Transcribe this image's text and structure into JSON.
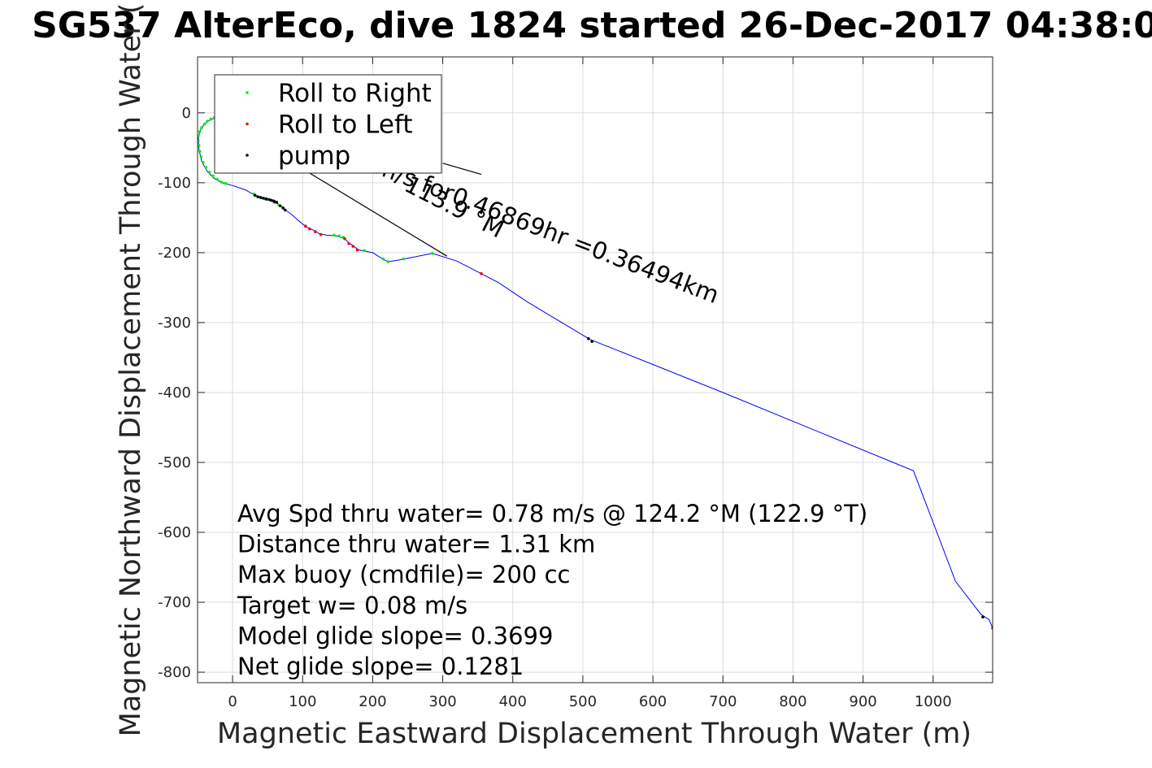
{
  "chart_data": {
    "type": "scatter",
    "title": "SG537 AlterEco, dive 1824 started 26-Dec-2017 04:38:0",
    "xlabel": "Magnetic Eastward Displacement Through Water (m)",
    "ylabel": "Magnetic Northward Displacement Through Water (",
    "xlim": [
      -50,
      1085
    ],
    "ylim": [
      -815,
      80
    ],
    "xticks": [
      0,
      100,
      200,
      300,
      400,
      500,
      600,
      700,
      800,
      900,
      1000
    ],
    "yticks": [
      0,
      -100,
      -200,
      -300,
      -400,
      -500,
      -600,
      -700,
      -800
    ],
    "grid": true,
    "legend_position": "top-left",
    "legend": [
      {
        "label": "Roll to Right",
        "color": "#00ee00"
      },
      {
        "label": "Roll to Left",
        "color": "#ff0000"
      },
      {
        "label": "pump",
        "color": "#000000"
      }
    ],
    "series": [
      {
        "name": "track",
        "color": "#0000ff",
        "style": "line",
        "points": [
          [
            0,
            0
          ],
          [
            -12,
            -3
          ],
          [
            -25,
            -7
          ],
          [
            -36,
            -12
          ],
          [
            -45,
            -22
          ],
          [
            -49,
            -35
          ],
          [
            -48,
            -52
          ],
          [
            -44,
            -70
          ],
          [
            -36,
            -84
          ],
          [
            -26,
            -94
          ],
          [
            -15,
            -100
          ],
          [
            0,
            -104
          ],
          [
            18,
            -110
          ],
          [
            32,
            -118
          ],
          [
            42,
            -123
          ],
          [
            58,
            -126
          ],
          [
            65,
            -130
          ],
          [
            74,
            -138
          ],
          [
            85,
            -146
          ],
          [
            95,
            -155
          ],
          [
            105,
            -163
          ],
          [
            116,
            -168
          ],
          [
            124,
            -173
          ],
          [
            135,
            -175
          ],
          [
            148,
            -176
          ],
          [
            160,
            -180
          ],
          [
            166,
            -186
          ],
          [
            172,
            -190
          ],
          [
            180,
            -196
          ],
          [
            200,
            -200
          ],
          [
            216,
            -210
          ],
          [
            222,
            -213
          ],
          [
            240,
            -210
          ],
          [
            285,
            -201
          ],
          [
            320,
            -212
          ],
          [
            355,
            -230
          ],
          [
            380,
            -243
          ],
          [
            420,
            -270
          ],
          [
            470,
            -300
          ],
          [
            510,
            -324
          ],
          [
            550,
            -340
          ],
          [
            700,
            -400
          ],
          [
            972,
            -512
          ],
          [
            1032,
            -670
          ],
          [
            1068,
            -717
          ],
          [
            1080,
            -725
          ],
          [
            1085,
            -737
          ]
        ]
      },
      {
        "name": "Roll to Right",
        "color": "#00ee00",
        "style": "dots",
        "points": [
          [
            -3,
            -1
          ],
          [
            -8,
            -2
          ],
          [
            -14,
            -3
          ],
          [
            -20,
            -5
          ],
          [
            -26,
            -7
          ],
          [
            -31,
            -9
          ],
          [
            -36,
            -12
          ],
          [
            -40,
            -16
          ],
          [
            -44,
            -21
          ],
          [
            -47,
            -27
          ],
          [
            -49,
            -33
          ],
          [
            -49,
            -40
          ],
          [
            -48,
            -47
          ],
          [
            -47,
            -55
          ],
          [
            -45,
            -63
          ],
          [
            -42,
            -71
          ],
          [
            -38,
            -78
          ],
          [
            -33,
            -85
          ],
          [
            -28,
            -90
          ],
          [
            -22,
            -95
          ],
          [
            -16,
            -99
          ],
          [
            -10,
            -101
          ],
          [
            30,
            -116
          ],
          [
            48,
            -124
          ],
          [
            60,
            -128
          ],
          [
            66,
            -132
          ],
          [
            145,
            -175
          ],
          [
            152,
            -176
          ],
          [
            158,
            -178
          ],
          [
            188,
            -197
          ],
          [
            215,
            -209
          ],
          [
            222,
            -213
          ],
          [
            244,
            -209
          ],
          [
            285,
            -201
          ]
        ]
      },
      {
        "name": "Roll to Left",
        "color": "#ff0000",
        "style": "dots",
        "points": [
          [
            -1,
            -1
          ],
          [
            104,
            -162
          ],
          [
            110,
            -166
          ],
          [
            118,
            -170
          ],
          [
            126,
            -174
          ],
          [
            160,
            -180
          ],
          [
            166,
            -187
          ],
          [
            172,
            -191
          ],
          [
            178,
            -196
          ],
          [
            355,
            -230
          ],
          [
            1085,
            -737
          ]
        ]
      },
      {
        "name": "pump",
        "color": "#000000",
        "style": "dots",
        "points": [
          [
            32,
            -118
          ],
          [
            36,
            -120
          ],
          [
            40,
            -121
          ],
          [
            44,
            -122
          ],
          [
            48,
            -123
          ],
          [
            52,
            -124
          ],
          [
            55,
            -125
          ],
          [
            58,
            -126
          ],
          [
            60,
            -127
          ],
          [
            63,
            -128
          ],
          [
            68,
            -133
          ],
          [
            72,
            -136
          ],
          [
            75,
            -139
          ],
          [
            508,
            -323
          ],
          [
            513,
            -327
          ],
          [
            1071,
            -721
          ]
        ]
      }
    ],
    "guide_lines": [
      [
        [
          70,
          -62
        ],
        [
          306,
          -205
        ]
      ],
      [
        [
          300,
          -72
        ],
        [
          355,
          -88
        ]
      ]
    ],
    "annotations": [
      {
        "text": "m/s for0.46869hr =0.36494km",
        "x": 200,
        "y": -85,
        "rotate": 21
      },
      {
        "text": "113.9 °M",
        "x": 243,
        "y": -110,
        "rotate": 27
      }
    ]
  },
  "stats": [
    "Avg Spd thru water=  0.78 m/s @ 124.2 °M (122.9 °T)",
    "Distance thru water=  1.31 km",
    "Max buoy (cmdfile)= 200 cc",
    "Target w= 0.08 m/s",
    "Model glide slope= 0.3699",
    "Net glide slope= 0.1281"
  ]
}
